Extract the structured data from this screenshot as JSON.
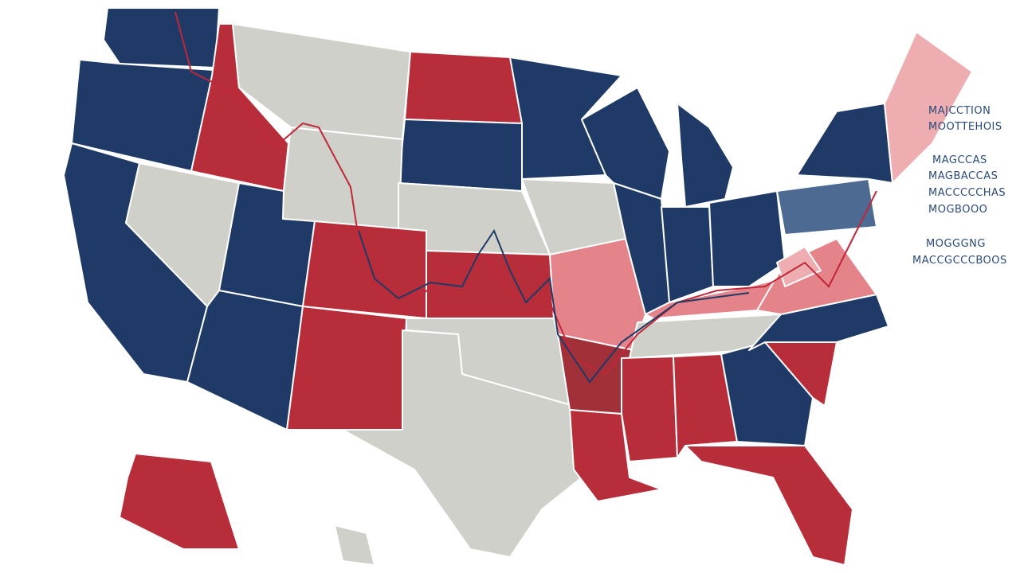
{
  "map": {
    "labels": [
      "MAJCCTION",
      "MOOTTEHOIS",
      "MAGCCAS",
      "MAGBACCAS",
      "MACCCCCHAS",
      "MOGBOOO",
      "MOGGGNG",
      "MACCGCCCBOOS"
    ]
  }
}
